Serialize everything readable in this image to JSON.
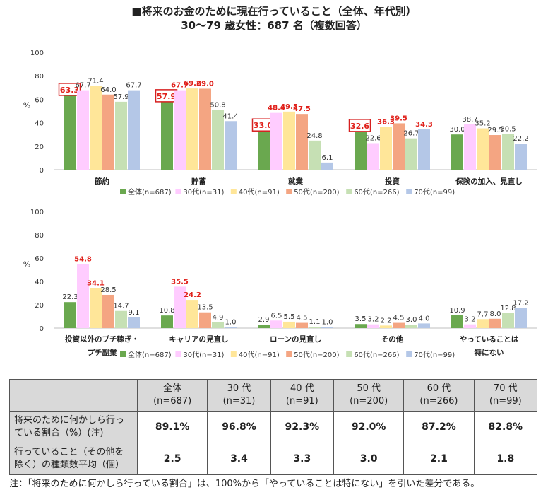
{
  "header": {
    "title": "■将来のお金のために現在行っていること（全体、年代別）",
    "subtitle": "30～79 歳女性：687 名（複数回答）"
  },
  "colors": {
    "series": [
      "#6aa84f",
      "#ffccff",
      "#ffe699",
      "#f4a582",
      "#c6e0b4",
      "#b4c7e7"
    ],
    "highlight_text": "#e0201a",
    "highlight_box": "#d62020",
    "axis": "#bfbfbf"
  },
  "chart_data": [
    {
      "type": "bar",
      "ylabel": "%",
      "ylim": [
        0,
        100
      ],
      "yticks": [
        0,
        20,
        40,
        60,
        80,
        100
      ],
      "legend_position": "bottom",
      "categories": [
        [
          "節約"
        ],
        [
          "貯蓄"
        ],
        [
          "就業"
        ],
        [
          "投資"
        ],
        [
          "保険の加入、見直し"
        ]
      ],
      "series": [
        {
          "name": "全体(n=687)",
          "values": [
            63.3,
            57.9,
            33.0,
            32.6,
            30.0
          ]
        },
        {
          "name": "30代(n=31)",
          "values": [
            67.7,
            67.7,
            48.4,
            22.6,
            38.7
          ]
        },
        {
          "name": "40代(n=91)",
          "values": [
            71.4,
            69.2,
            49.5,
            36.3,
            35.2
          ]
        },
        {
          "name": "50代(n=200)",
          "values": [
            64.0,
            69.0,
            47.5,
            39.5,
            29.5
          ]
        },
        {
          "name": "60代(n=266)",
          "values": [
            57.9,
            50.8,
            24.8,
            26.7,
            30.5
          ]
        },
        {
          "name": "70代(n=99)",
          "values": [
            67.7,
            41.4,
            6.1,
            34.3,
            22.2
          ]
        }
      ],
      "labels": [
        [
          "63.3",
          "67.7",
          "71.4",
          "64.0",
          "57.9",
          "67.7"
        ],
        [
          "57.9",
          "67.7",
          "69.2",
          "69.0",
          "50.8",
          "41.4"
        ],
        [
          "33.0",
          "48.4",
          "49.5",
          "47.5",
          "24.8",
          "6.1"
        ],
        [
          "32.6",
          "22.6",
          "36.3",
          "39.5",
          "26.7",
          "34.3"
        ],
        [
          "30.0",
          "38.7",
          "35.2",
          "29.5",
          "30.5",
          "22.2"
        ]
      ],
      "red_labels": [
        [],
        [
          1,
          2,
          3
        ],
        [
          1,
          2,
          3
        ],
        [
          2,
          3,
          5
        ],
        []
      ],
      "boxed_labels": [
        0,
        1,
        2,
        3
      ]
    },
    {
      "type": "bar",
      "ylabel": "%",
      "ylim": [
        0,
        100
      ],
      "yticks": [
        0,
        20,
        40,
        60,
        80,
        100
      ],
      "legend_position": "bottom",
      "categories": [
        [
          "投資以外のプチ稼ぎ・",
          "プチ副業"
        ],
        [
          "キャリアの見直し"
        ],
        [
          "ローンの見直し"
        ],
        [
          "その他"
        ],
        [
          "やっていることは",
          "特にない"
        ]
      ],
      "series": [
        {
          "name": "全体(n=687)",
          "values": [
            22.3,
            10.8,
            2.9,
            3.5,
            10.9
          ]
        },
        {
          "name": "30代(n=31)",
          "values": [
            54.8,
            35.5,
            6.5,
            3.2,
            3.2
          ]
        },
        {
          "name": "40代(n=91)",
          "values": [
            34.1,
            24.2,
            5.5,
            2.2,
            7.7
          ]
        },
        {
          "name": "50代(n=200)",
          "values": [
            28.5,
            13.5,
            4.5,
            4.5,
            8.0
          ]
        },
        {
          "name": "60代(n=266)",
          "values": [
            14.7,
            4.9,
            1.1,
            3.0,
            12.8
          ]
        },
        {
          "name": "70代(n=99)",
          "values": [
            9.1,
            1.0,
            1.0,
            4.0,
            17.2
          ]
        }
      ],
      "labels": [
        [
          "22.3",
          "54.8",
          "34.1",
          "28.5",
          "14.7",
          "9.1"
        ],
        [
          "10.8",
          "35.5",
          "24.2",
          "13.5",
          "4.9",
          "1.0"
        ],
        [
          "2.9",
          "6.5",
          "5.5",
          "4.5",
          "1.1",
          "1.0"
        ],
        [
          "3.5",
          "3.2",
          "2.2",
          "4.5",
          "3.0",
          "4.0"
        ],
        [
          "10.9",
          "3.2",
          "7.7",
          "8.0",
          "12.8",
          "17.2"
        ]
      ],
      "red_labels": [
        [
          1,
          2
        ],
        [
          1,
          2
        ],
        [],
        [],
        []
      ],
      "boxed_labels": []
    }
  ],
  "summary_table": {
    "columns": [
      {
        "name": "全体",
        "n": "(n=687)"
      },
      {
        "name": "30 代",
        "n": "(n=31)"
      },
      {
        "name": "40 代",
        "n": "(n=91)"
      },
      {
        "name": "50 代",
        "n": "(n=200)"
      },
      {
        "name": "60 代",
        "n": "(n=266)"
      },
      {
        "name": "70 代",
        "n": "(n=99)"
      }
    ],
    "rows": [
      {
        "label_line1": "将来のために何かしら行っ",
        "label_line2": "ている割合（%）(注)",
        "values": [
          "89.1%",
          "96.8%",
          "92.3%",
          "92.0%",
          "87.2%",
          "82.8%"
        ]
      },
      {
        "label_line1": "行っていること（その他を",
        "label_line2": "除く）の種類数平均（個）",
        "values": [
          "2.5",
          "3.4",
          "3.3",
          "3.0",
          "2.1",
          "1.8"
        ]
      }
    ]
  },
  "footnote": "注：「将来のために何かしら行っている割合」は、100%から「やっていることは特にない」を引いた差分である。"
}
